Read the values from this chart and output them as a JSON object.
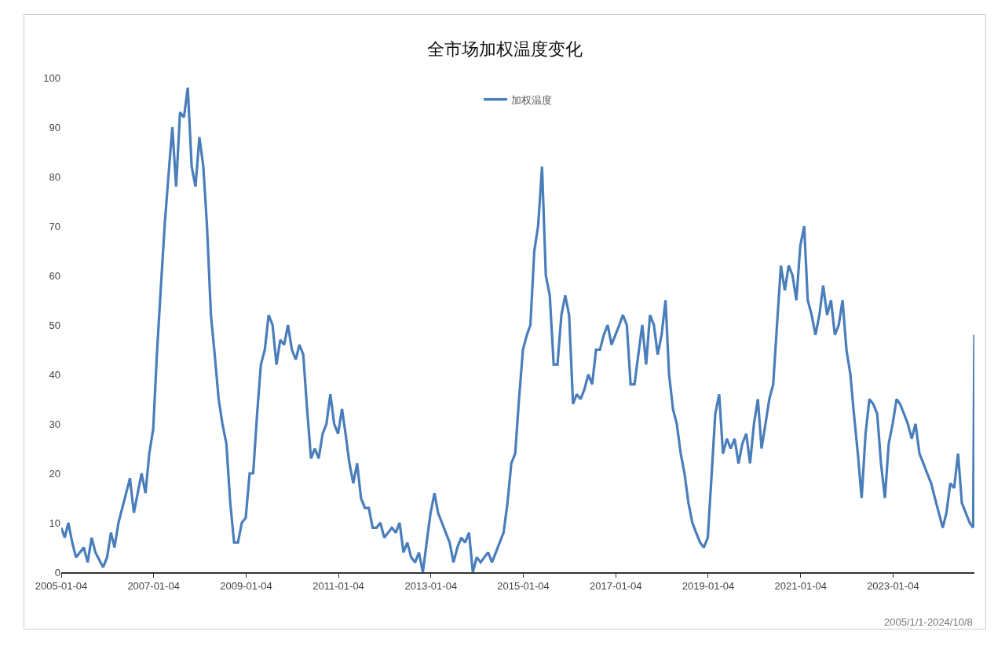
{
  "chart_data": {
    "type": "line",
    "title": "全市场加权温度变化",
    "annotations": [
      "2005/1/1-2024/10/8"
    ],
    "x": [
      "2005-01-04",
      "2005-02",
      "2005-03",
      "2005-04",
      "2005-05",
      "2005-07",
      "2005-08",
      "2005-09",
      "2005-10",
      "2005-12",
      "2006-01",
      "2006-02",
      "2006-03",
      "2006-04",
      "2006-06",
      "2006-07",
      "2006-08",
      "2006-10",
      "2006-11",
      "2006-12",
      "2007-01",
      "2007-02",
      "2007-03",
      "2007-04",
      "2007-05",
      "2007-06",
      "2007-07",
      "2007-08",
      "2007-09",
      "2007-10",
      "2007-11",
      "2007-12",
      "2008-01",
      "2008-02",
      "2008-03",
      "2008-04",
      "2008-05",
      "2008-06",
      "2008-07",
      "2008-08",
      "2008-09",
      "2008-10",
      "2008-11",
      "2008-12",
      "2009-01",
      "2009-02",
      "2009-03",
      "2009-04",
      "2009-05",
      "2009-06",
      "2009-07",
      "2009-08",
      "2009-09",
      "2009-10",
      "2009-11",
      "2009-12",
      "2010-01",
      "2010-02",
      "2010-03",
      "2010-04",
      "2010-05",
      "2010-06",
      "2010-07",
      "2010-08",
      "2010-09",
      "2010-10",
      "2010-11",
      "2010-12",
      "2011-01",
      "2011-02",
      "2011-03",
      "2011-04",
      "2011-05",
      "2011-06",
      "2011-07",
      "2011-08",
      "2011-09",
      "2011-10",
      "2011-11",
      "2011-12",
      "2012-01",
      "2012-02",
      "2012-03",
      "2012-04",
      "2012-05",
      "2012-06",
      "2012-07",
      "2012-08",
      "2012-09",
      "2012-10",
      "2012-11",
      "2012-12",
      "2013-01",
      "2013-02",
      "2013-03",
      "2013-04",
      "2013-05",
      "2013-06",
      "2013-07",
      "2013-08",
      "2013-09",
      "2013-10",
      "2013-11",
      "2013-12",
      "2014-01",
      "2014-02",
      "2014-03",
      "2014-04",
      "2014-05",
      "2014-06",
      "2014-07",
      "2014-08",
      "2014-09",
      "2014-10",
      "2014-11",
      "2014-12",
      "2015-01",
      "2015-02",
      "2015-03",
      "2015-04",
      "2015-05",
      "2015-06",
      "2015-07",
      "2015-08",
      "2015-09",
      "2015-10",
      "2015-11",
      "2015-12",
      "2016-01",
      "2016-02",
      "2016-03",
      "2016-04",
      "2016-05",
      "2016-06",
      "2016-07",
      "2016-08",
      "2016-09",
      "2016-10",
      "2016-11",
      "2016-12",
      "2017-01",
      "2017-02",
      "2017-03",
      "2017-04",
      "2017-05",
      "2017-06",
      "2017-07",
      "2017-08",
      "2017-09",
      "2017-10",
      "2017-11",
      "2017-12",
      "2018-01",
      "2018-02",
      "2018-03",
      "2018-04",
      "2018-05",
      "2018-06",
      "2018-07",
      "2018-08",
      "2018-09",
      "2018-10",
      "2018-11",
      "2018-12",
      "2019-01",
      "2019-02",
      "2019-03",
      "2019-04",
      "2019-05",
      "2019-06",
      "2019-07",
      "2019-08",
      "2019-09",
      "2019-10",
      "2019-11",
      "2019-12",
      "2020-01",
      "2020-02",
      "2020-03",
      "2020-04",
      "2020-05",
      "2020-06",
      "2020-07",
      "2020-08",
      "2020-09",
      "2020-10",
      "2020-11",
      "2020-12",
      "2021-01",
      "2021-02",
      "2021-03",
      "2021-04",
      "2021-05",
      "2021-06",
      "2021-07",
      "2021-08",
      "2021-09",
      "2021-10",
      "2021-11",
      "2021-12",
      "2022-01",
      "2022-02",
      "2022-03",
      "2022-04",
      "2022-05",
      "2022-06",
      "2022-07",
      "2022-08",
      "2022-09",
      "2022-10",
      "2022-11",
      "2022-12",
      "2023-01",
      "2023-02",
      "2023-03",
      "2023-04",
      "2023-05",
      "2023-06",
      "2023-07",
      "2023-08",
      "2023-09",
      "2023-10",
      "2023-11",
      "2023-12",
      "2024-01",
      "2024-02",
      "2024-03",
      "2024-04",
      "2024-05",
      "2024-06",
      "2024-07",
      "2024-08",
      "2024-09",
      "2024-09-28",
      "2024-10-08"
    ],
    "series": [
      {
        "name": "加权温度",
        "color": "#4a7ebb",
        "values": [
          9,
          7,
          10,
          6,
          3,
          5,
          2,
          7,
          4,
          1,
          3,
          8,
          5,
          10,
          16,
          19,
          12,
          20,
          16,
          24,
          29,
          45,
          57,
          70,
          80,
          90,
          78,
          93,
          92,
          98,
          82,
          78,
          88,
          82,
          70,
          52,
          44,
          35,
          30,
          26,
          14,
          6,
          6,
          10,
          11,
          20,
          20,
          32,
          42,
          45,
          52,
          50,
          42,
          47,
          46,
          50,
          45,
          43,
          46,
          44,
          33,
          23,
          25,
          23,
          28,
          30,
          36,
          30,
          28,
          33,
          28,
          22,
          18,
          22,
          15,
          13,
          13,
          9,
          9,
          10,
          7,
          8,
          9,
          8,
          10,
          4,
          6,
          3,
          2,
          4,
          0,
          6,
          12,
          16,
          12,
          10,
          8,
          6,
          2,
          5,
          7,
          6,
          8,
          0,
          3,
          2,
          3,
          4,
          2,
          4,
          6,
          8,
          14,
          22,
          24,
          35,
          45,
          48,
          50,
          65,
          70,
          82,
          60,
          56,
          42,
          42,
          52,
          56,
          52,
          34,
          36,
          35,
          37,
          40,
          38,
          45,
          45,
          48,
          50,
          46,
          48,
          50,
          52,
          50,
          38,
          38,
          44,
          50,
          42,
          52,
          50,
          44,
          48,
          55,
          40,
          33,
          30,
          24,
          20,
          14,
          10,
          8,
          6,
          5,
          7,
          20,
          32,
          36,
          24,
          27,
          25,
          27,
          22,
          26,
          28,
          22,
          30,
          35,
          25,
          30,
          35,
          38,
          50,
          62,
          57,
          62,
          60,
          55,
          66,
          70,
          55,
          52,
          48,
          52,
          58,
          52,
          55,
          48,
          50,
          55,
          45,
          40,
          32,
          24,
          15,
          28,
          35,
          34,
          32,
          22,
          15,
          26,
          30,
          35,
          34,
          32,
          30,
          27,
          30,
          24,
          22,
          20,
          18,
          15,
          12,
          9,
          12,
          18,
          17,
          24,
          14,
          12,
          10,
          9,
          48
        ]
      }
    ],
    "xlim": [
      "2005-01-04",
      "2024-10-08"
    ],
    "xticks": [
      "2005-01-04",
      "2007-01-04",
      "2009-01-04",
      "2011-01-04",
      "2013-01-04",
      "2015-01-04",
      "2017-01-04",
      "2019-01-04",
      "2021-01-04",
      "2023-01-04"
    ],
    "ylim": [
      0,
      100
    ],
    "yticks": [
      0,
      10,
      20,
      30,
      40,
      50,
      60,
      70,
      80,
      90,
      100
    ],
    "grid": false,
    "legend": "top",
    "marker": "none",
    "line_style": "solid"
  }
}
